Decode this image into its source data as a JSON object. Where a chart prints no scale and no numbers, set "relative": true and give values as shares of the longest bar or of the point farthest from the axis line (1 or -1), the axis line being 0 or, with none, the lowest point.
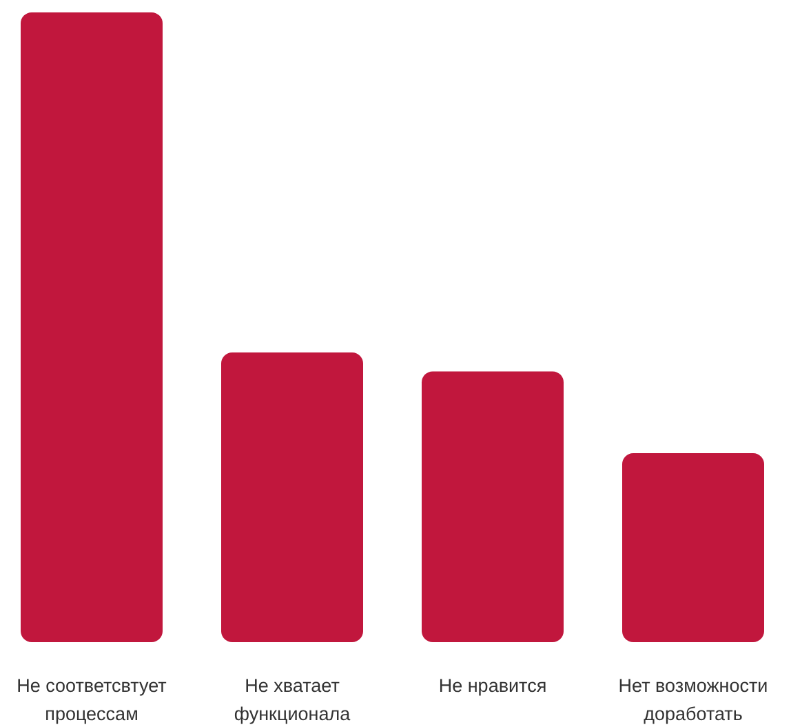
{
  "chart_data": {
    "type": "bar",
    "relative": true,
    "tick_labels": "x",
    "color": "#c1173d",
    "categories": [
      "Не соответсвтует процессам",
      "Не хватает функционала",
      "Не нравится",
      "Нет возможности доработать"
    ],
    "values": [
      1,
      0.46,
      0.43,
      0.3
    ]
  }
}
